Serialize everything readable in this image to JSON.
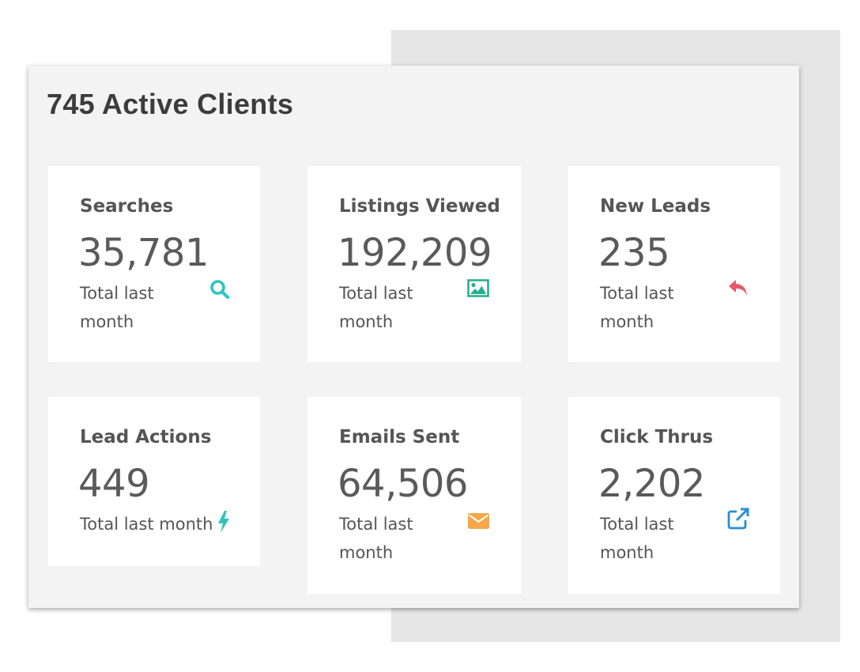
{
  "dashboard": {
    "title": "745 Active Clients",
    "cards": [
      {
        "label": "Searches",
        "value": "35,781",
        "sub": "Total last month",
        "icon": "search-icon",
        "icon_color": "#2fc5c0"
      },
      {
        "label": "Listings Viewed",
        "value": "192,209",
        "sub": "Total last month",
        "icon": "image-icon",
        "icon_color": "#2bae8f"
      },
      {
        "label": "New Leads",
        "value": "235",
        "sub": "Total last month",
        "icon": "reply-icon",
        "icon_color": "#e8576a"
      },
      {
        "label": "Lead Actions",
        "value": "449",
        "sub": "Total last month",
        "icon": "bolt-icon",
        "icon_color": "#2fc5c0"
      },
      {
        "label": "Emails Sent",
        "value": "64,506",
        "sub": "Total last month",
        "icon": "envelope-icon",
        "icon_color": "#f5a74a"
      },
      {
        "label": "Click Thrus",
        "value": "2,202",
        "sub": "Total last month",
        "icon": "external-link-icon",
        "icon_color": "#2a8dd4"
      }
    ]
  }
}
